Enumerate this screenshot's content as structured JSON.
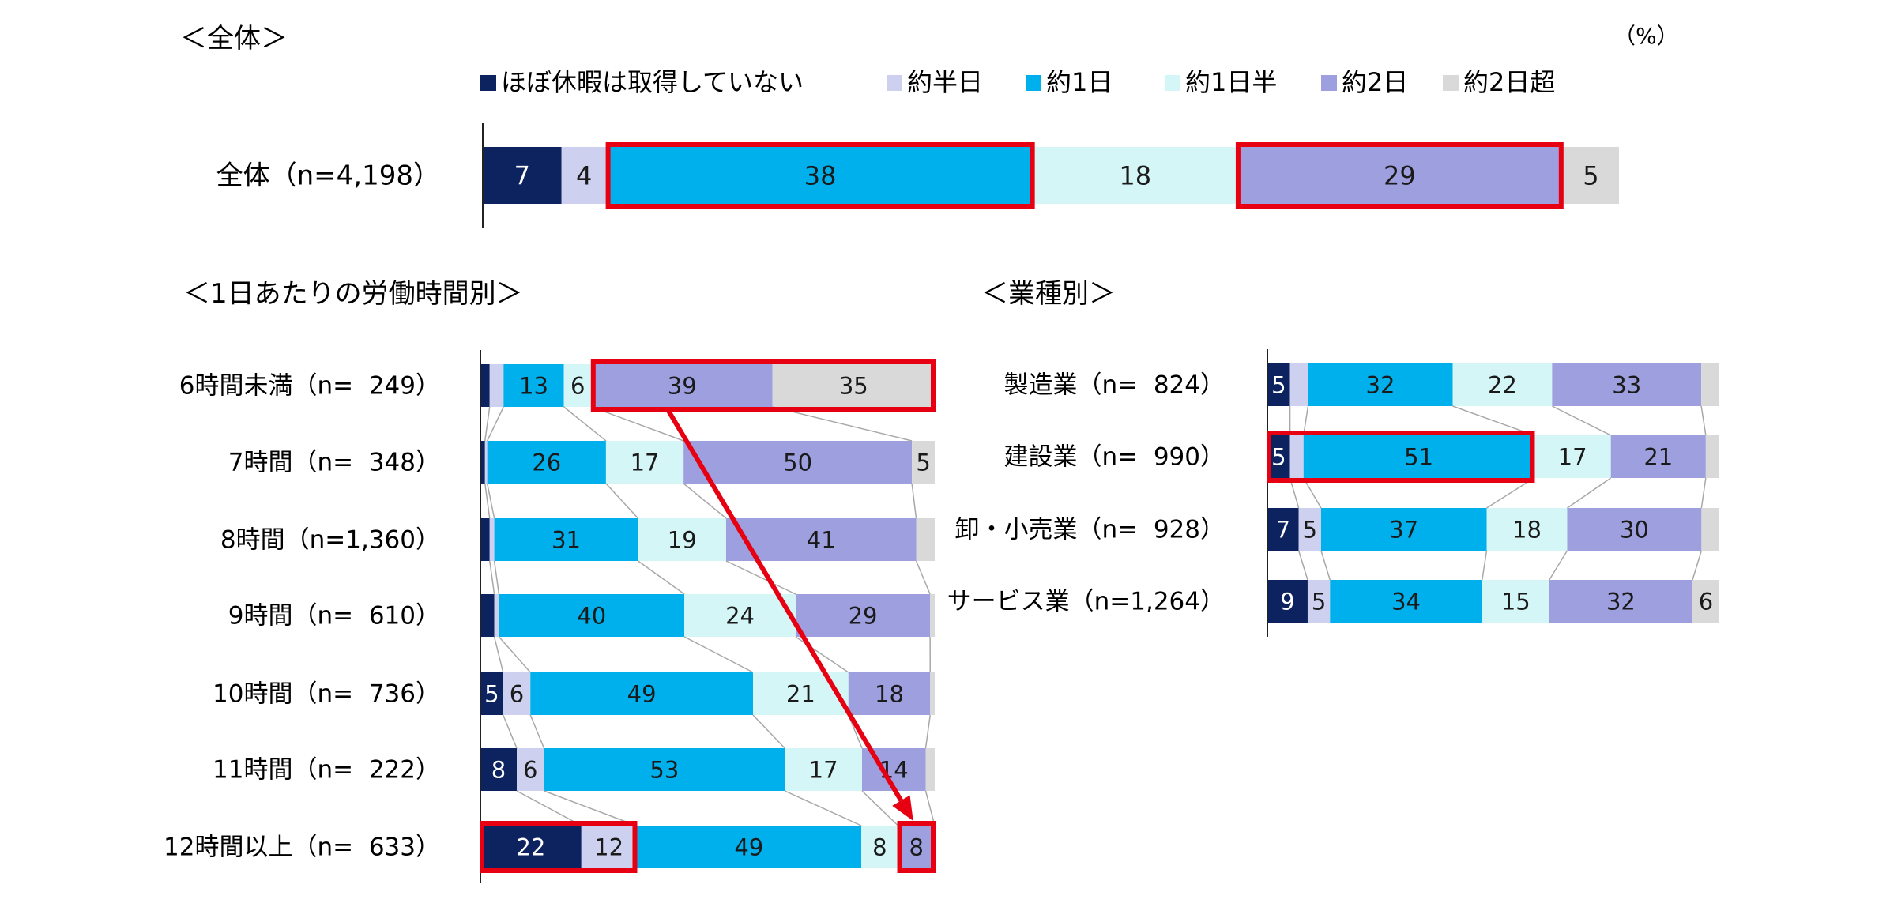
{
  "unit_note": "（%）",
  "legend": [
    {
      "label": "ほぼ休暇は取得していない",
      "color": "#0d2360"
    },
    {
      "label": "約半日",
      "color": "#cdd0ee"
    },
    {
      "label": "約1日",
      "color": "#00b0ec"
    },
    {
      "label": "約1日半",
      "color": "#d5f6f7"
    },
    {
      "label": "約2日",
      "color": "#9e9fdf"
    },
    {
      "label": "約2日超",
      "color": "#d9d9d9"
    }
  ],
  "highlight_color": "#e60012",
  "connector_color": "#a8a8a8",
  "chart_data": [
    {
      "type": "bar",
      "orientation": "horizontal-stacked-100",
      "title": "＜全体＞",
      "categories": [
        "全体（n=4,198）"
      ],
      "series": [
        {
          "name": "ほぼ休暇は取得していない",
          "values": [
            7
          ]
        },
        {
          "name": "約半日",
          "values": [
            4
          ]
        },
        {
          "name": "約1日",
          "values": [
            38
          ]
        },
        {
          "name": "約1日半",
          "values": [
            18
          ]
        },
        {
          "name": "約2日",
          "values": [
            29
          ]
        },
        {
          "name": "約2日超",
          "values": [
            5
          ]
        }
      ],
      "xlim": [
        0,
        100
      ],
      "highlights": [
        {
          "row": 0,
          "from": 2,
          "to": 2
        },
        {
          "row": 0,
          "from": 4,
          "to": 4
        }
      ]
    },
    {
      "type": "bar",
      "orientation": "horizontal-stacked-100",
      "title": "＜1日あたりの労働時間別＞",
      "categories": [
        "6時間未満（n=  249）",
        "7時間（n=  348）",
        "8時間（n=1,360）",
        "9時間（n=  610）",
        "10時間（n=  736）",
        "11時間（n=  222）",
        "12時間以上（n=  633）"
      ],
      "series": [
        {
          "name": "ほぼ休暇は取得していない",
          "values": [
            2,
            1,
            2,
            3,
            5,
            8,
            22
          ]
        },
        {
          "name": "約半日",
          "values": [
            3,
            0.5,
            1,
            1,
            6,
            6,
            12
          ]
        },
        {
          "name": "約1日",
          "values": [
            13,
            26,
            31,
            40,
            49,
            53,
            49
          ]
        },
        {
          "name": "約1日半",
          "values": [
            6,
            17,
            19,
            24,
            21,
            17,
            8
          ]
        },
        {
          "name": "約2日",
          "values": [
            39,
            50,
            41,
            29,
            18,
            14,
            8
          ]
        },
        {
          "name": "約2日超",
          "values": [
            35,
            5,
            4,
            1,
            1,
            2,
            0
          ]
        }
      ],
      "labels": [
        [
          "",
          "",
          "13",
          "6",
          "39",
          "35"
        ],
        [
          "",
          "",
          "26",
          "17",
          "50",
          "5"
        ],
        [
          "",
          "",
          "31",
          "19",
          "41",
          ""
        ],
        [
          "",
          "",
          "40",
          "24",
          "29",
          ""
        ],
        [
          "5",
          "6",
          "49",
          "21",
          "18",
          ""
        ],
        [
          "8",
          "6",
          "53",
          "17",
          "14",
          ""
        ],
        [
          "22",
          "12",
          "49",
          "8",
          "8",
          ""
        ]
      ],
      "xlim": [
        0,
        100
      ],
      "highlights": [
        {
          "row": 0,
          "from": 4,
          "to": 5
        },
        {
          "row": 6,
          "from": 0,
          "to": 1
        },
        {
          "row": 6,
          "from": 4,
          "to": 4
        }
      ],
      "arrow": {
        "from_row": 0,
        "from_segment": 4,
        "to_row": 6,
        "to_segment": 4
      }
    },
    {
      "type": "bar",
      "orientation": "horizontal-stacked-100",
      "title": "＜業種別＞",
      "categories": [
        "製造業（n=  824）",
        "建設業（n=  990）",
        "卸・小売業（n=  928）",
        "サービス業（n=1,264）"
      ],
      "series": [
        {
          "name": "ほぼ休暇は取得していない",
          "values": [
            5,
            5,
            7,
            9
          ]
        },
        {
          "name": "約半日",
          "values": [
            4,
            3,
            5,
            5
          ]
        },
        {
          "name": "約1日",
          "values": [
            32,
            51,
            37,
            34
          ]
        },
        {
          "name": "約1日半",
          "values": [
            22,
            17,
            18,
            15
          ]
        },
        {
          "name": "約2日",
          "values": [
            33,
            21,
            30,
            32
          ]
        },
        {
          "name": "約2日超",
          "values": [
            4,
            3,
            4,
            6
          ]
        }
      ],
      "labels": [
        [
          "5",
          "",
          "32",
          "22",
          "33",
          ""
        ],
        [
          "5",
          "",
          "51",
          "17",
          "21",
          ""
        ],
        [
          "7",
          "5",
          "37",
          "18",
          "30",
          ""
        ],
        [
          "9",
          "5",
          "34",
          "15",
          "32",
          "6"
        ]
      ],
      "xlim": [
        0,
        100
      ],
      "highlights": [
        {
          "row": 1,
          "from": 0,
          "to": 2
        }
      ]
    }
  ]
}
